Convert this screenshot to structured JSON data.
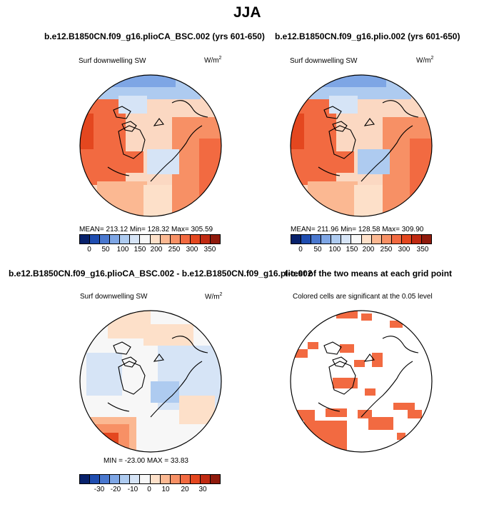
{
  "figure_title": "JJA",
  "panels": [
    {
      "title": "b.e12.B1850CN.f09_g16.plioCA_BSC.002 (yrs 601-650)",
      "var_label": "Surf downwelling SW",
      "units": "W/m",
      "units_exp": "2",
      "stats": "MEAN= 213.12   Min= 128.32   Max= 305.59"
    },
    {
      "title": "b.e12.B1850CN.f09_g16.plio.002 (yrs 601-650)",
      "var_label": "Surf downwelling SW",
      "units": "W/m",
      "units_exp": "2",
      "stats": "MEAN= 211.96   Min= 128.58   Max= 309.90"
    },
    {
      "title": "b.e12.B1850CN.f09_g16.plioCA_BSC.002 - b.e12.B1850CN.f09_g16.plio.002",
      "var_label": "Surf downwelling SW",
      "units": "W/m",
      "units_exp": "2",
      "stats": "MIN = -23.00  MAX =  33.83"
    },
    {
      "title": "t-test of the two means at each grid point",
      "var_label": "Colored cells are significant at the 0.05 level"
    }
  ],
  "chart_data": [
    {
      "type": "heatmap",
      "projection": "north polar stereographic",
      "title": "b.e12.B1850CN.f09_g16.plioCA_BSC.002 (yrs 601-650)",
      "variable": "Surf downwelling SW",
      "units": "W/m2",
      "mean": 213.12,
      "min": 128.32,
      "max": 305.59,
      "colorbar_ticks": [
        "0",
        "50",
        "100",
        "150",
        "200",
        "250",
        "300",
        "350"
      ],
      "colorbar_colors": [
        "#08216b",
        "#1f4db0",
        "#4a78cf",
        "#7ea6e5",
        "#aecbf0",
        "#d6e4f6",
        "#f7f7f7",
        "#fde0c9",
        "#fbb892",
        "#f79065",
        "#f26a41",
        "#e4471f",
        "#c02a12",
        "#8f1a0c"
      ]
    },
    {
      "type": "heatmap",
      "projection": "north polar stereographic",
      "title": "b.e12.B1850CN.f09_g16.plio.002 (yrs 601-650)",
      "variable": "Surf downwelling SW",
      "units": "W/m2",
      "mean": 211.96,
      "min": 128.58,
      "max": 309.9,
      "colorbar_ticks": [
        "0",
        "50",
        "100",
        "150",
        "200",
        "250",
        "300",
        "350"
      ],
      "colorbar_colors": [
        "#08216b",
        "#1f4db0",
        "#4a78cf",
        "#7ea6e5",
        "#aecbf0",
        "#d6e4f6",
        "#f7f7f7",
        "#fde0c9",
        "#fbb892",
        "#f79065",
        "#f26a41",
        "#e4471f",
        "#c02a12",
        "#8f1a0c"
      ]
    },
    {
      "type": "heatmap",
      "projection": "north polar stereographic",
      "title": "b.e12.B1850CN.f09_g16.plioCA_BSC.002 - b.e12.B1850CN.f09_g16.plio.002",
      "variable": "Surf downwelling SW",
      "units": "W/m2",
      "min": -23.0,
      "max": 33.83,
      "colorbar_ticks": [
        "-30",
        "-20",
        "-10",
        "0",
        "10",
        "20",
        "30"
      ],
      "colorbar_colors": [
        "#08216b",
        "#1f4db0",
        "#4a78cf",
        "#7ea6e5",
        "#aecbf0",
        "#d6e4f6",
        "#f7f7f7",
        "#fde0c9",
        "#fbb892",
        "#f79065",
        "#f26a41",
        "#e4471f",
        "#c02a12",
        "#8f1a0c"
      ]
    },
    {
      "type": "heatmap",
      "projection": "north polar stereographic",
      "title": "t-test of the two means at each grid point",
      "note": "Colored cells are significant at the 0.05 level",
      "significant_color": "#f26a41"
    }
  ]
}
